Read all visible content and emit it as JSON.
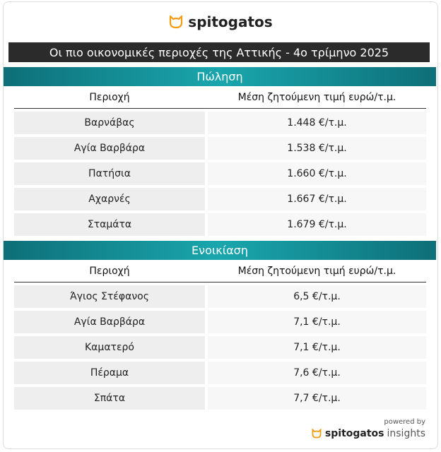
{
  "header": {
    "brand": "spitogatos",
    "title": "Οι πιο οικονομικές περιοχές της Αττικής - 4ο τρίμηνο 2025"
  },
  "sections": [
    {
      "heading": "Πώληση",
      "columns": [
        "Περιοχή",
        "Μέση ζητούμενη τιμή ευρώ/τ.μ."
      ],
      "rows": [
        [
          "Βαρνάβας",
          "1.448 €/τ.μ."
        ],
        [
          "Αγία Βαρβάρα",
          "1.538 €/τ.μ."
        ],
        [
          "Πατήσια",
          "1.660 €/τ.μ."
        ],
        [
          "Αχαρνές",
          "1.667 €/τ.μ."
        ],
        [
          "Σταμάτα",
          "1.679 €/τ.μ."
        ]
      ]
    },
    {
      "heading": "Ενοικίαση",
      "columns": [
        "Περιοχή",
        "Μέση ζητούμενη τιμή ευρώ/τ.μ."
      ],
      "rows": [
        [
          "Άγιος Στέφανος",
          "6,5 €/τ.μ."
        ],
        [
          "Αγία Βαρβάρα",
          "7,1 €/τ.μ."
        ],
        [
          "Καματερό",
          "7,1 €/τ.μ."
        ],
        [
          "Πέραμα",
          "7,6 €/τ.μ."
        ],
        [
          "Σπάτα",
          "7,7 €/τ.μ."
        ]
      ]
    }
  ],
  "footer": {
    "powered_by": "powered by",
    "brand": "spitogatos",
    "suffix": "insights"
  }
}
